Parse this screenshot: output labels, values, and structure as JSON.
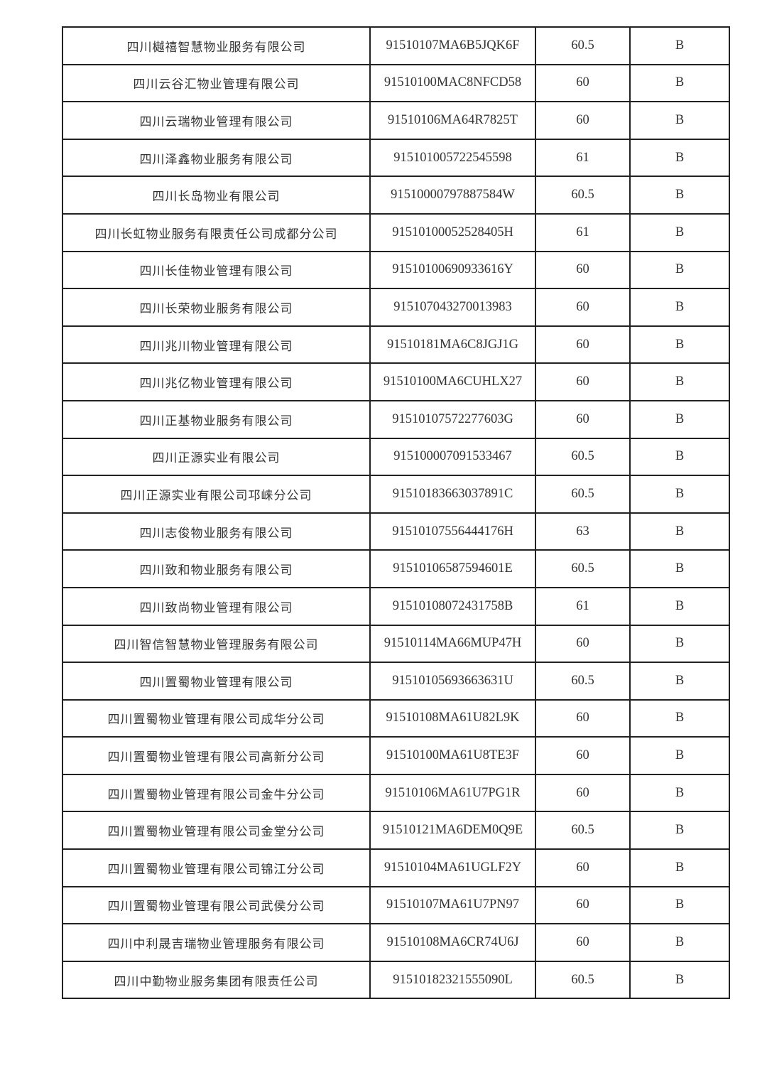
{
  "rows": [
    {
      "name": "四川樾禧智慧物业服务有限公司",
      "code": "91510107MA6B5JQK6F",
      "score": "60.5",
      "grade": "B"
    },
    {
      "name": "四川云谷汇物业管理有限公司",
      "code": "91510100MAC8NFCD58",
      "score": "60",
      "grade": "B"
    },
    {
      "name": "四川云瑞物业管理有限公司",
      "code": "91510106MA64R7825T",
      "score": "60",
      "grade": "B"
    },
    {
      "name": "四川泽鑫物业服务有限公司",
      "code": "915101005722545598",
      "score": "61",
      "grade": "B"
    },
    {
      "name": "四川长岛物业有限公司",
      "code": "91510000797887584W",
      "score": "60.5",
      "grade": "B"
    },
    {
      "name": "四川长虹物业服务有限责任公司成都分公司",
      "code": "91510100052528405H",
      "score": "61",
      "grade": "B"
    },
    {
      "name": "四川长佳物业管理有限公司",
      "code": "91510100690933616Y",
      "score": "60",
      "grade": "B"
    },
    {
      "name": "四川长荣物业服务有限公司",
      "code": "915107043270013983",
      "score": "60",
      "grade": "B"
    },
    {
      "name": "四川兆川物业管理有限公司",
      "code": "91510181MA6C8JGJ1G",
      "score": "60",
      "grade": "B"
    },
    {
      "name": "四川兆亿物业管理有限公司",
      "code": "91510100MA6CUHLX27",
      "score": "60",
      "grade": "B"
    },
    {
      "name": "四川正基物业服务有限公司",
      "code": "91510107572277603G",
      "score": "60",
      "grade": "B"
    },
    {
      "name": "四川正源实业有限公司",
      "code": "915100007091533467",
      "score": "60.5",
      "grade": "B"
    },
    {
      "name": "四川正源实业有限公司邛崃分公司",
      "code": "91510183663037891C",
      "score": "60.5",
      "grade": "B"
    },
    {
      "name": "四川志俊物业服务有限公司",
      "code": "91510107556444176H",
      "score": "63",
      "grade": "B"
    },
    {
      "name": "四川致和物业服务有限公司",
      "code": "91510106587594601E",
      "score": "60.5",
      "grade": "B"
    },
    {
      "name": "四川致尚物业管理有限公司",
      "code": "91510108072431758B",
      "score": "61",
      "grade": "B"
    },
    {
      "name": "四川智信智慧物业管理服务有限公司",
      "code": "91510114MA66MUP47H",
      "score": "60",
      "grade": "B"
    },
    {
      "name": "四川置蜀物业管理有限公司",
      "code": "91510105693663631U",
      "score": "60.5",
      "grade": "B"
    },
    {
      "name": "四川置蜀物业管理有限公司成华分公司",
      "code": "91510108MA61U82L9K",
      "score": "60",
      "grade": "B"
    },
    {
      "name": "四川置蜀物业管理有限公司高新分公司",
      "code": "91510100MA61U8TE3F",
      "score": "60",
      "grade": "B"
    },
    {
      "name": "四川置蜀物业管理有限公司金牛分公司",
      "code": "91510106MA61U7PG1R",
      "score": "60",
      "grade": "B"
    },
    {
      "name": "四川置蜀物业管理有限公司金堂分公司",
      "code": "91510121MA6DEM0Q9E",
      "score": "60.5",
      "grade": "B"
    },
    {
      "name": "四川置蜀物业管理有限公司锦江分公司",
      "code": "91510104MA61UGLF2Y",
      "score": "60",
      "grade": "B"
    },
    {
      "name": "四川置蜀物业管理有限公司武侯分公司",
      "code": "91510107MA61U7PN97",
      "score": "60",
      "grade": "B"
    },
    {
      "name": "四川中利晟吉瑞物业管理服务有限公司",
      "code": "91510108MA6CR74U6J",
      "score": "60",
      "grade": "B"
    },
    {
      "name": "四川中勤物业服务集团有限责任公司",
      "code": "91510182321555090L",
      "score": "60.5",
      "grade": "B"
    }
  ]
}
